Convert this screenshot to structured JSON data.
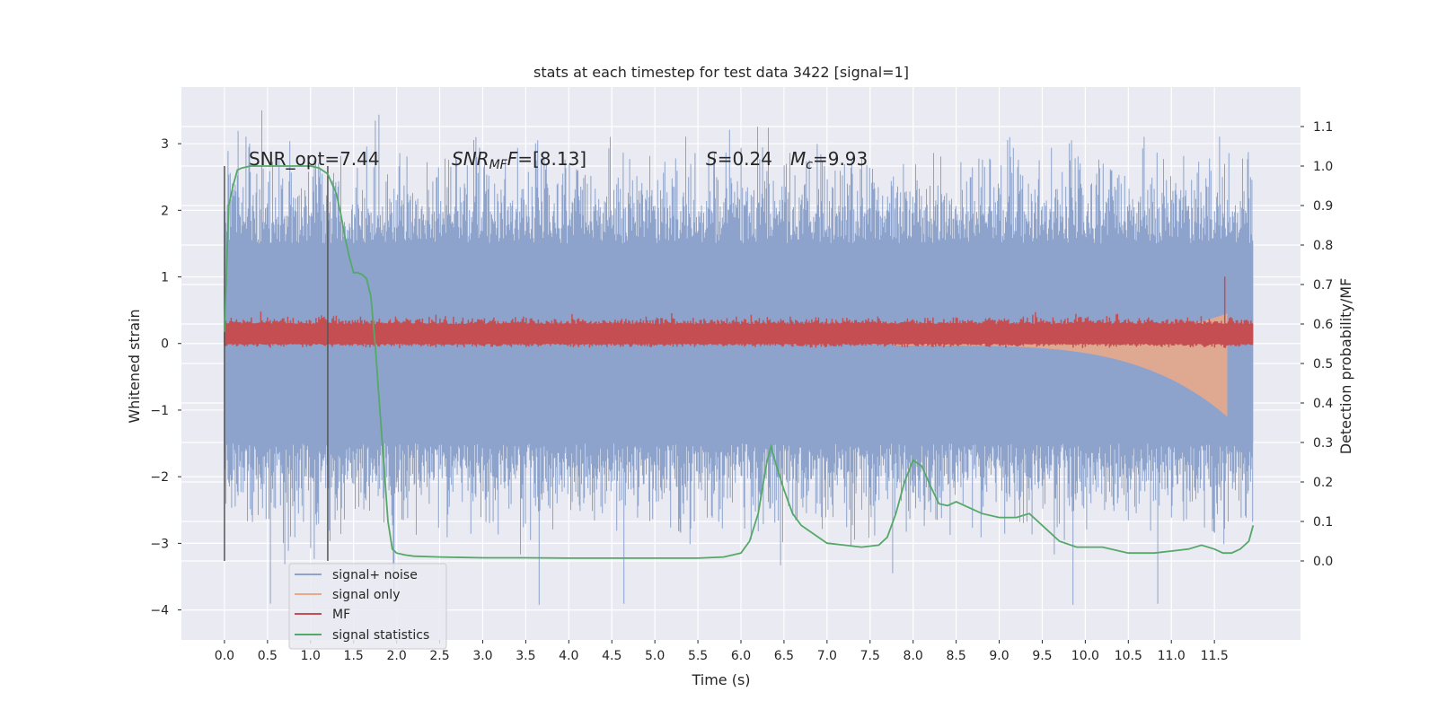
{
  "chart_data": {
    "type": "line",
    "title": "stats at each timestep for test data 3422 [signal=1]",
    "xlabel": "Time (s)",
    "ylabel_left": "Whitened strain",
    "ylabel_right": "Detection probability/MF",
    "xlim": [
      -0.5,
      12.5
    ],
    "ylim_left": [
      -4.45,
      3.85
    ],
    "ylim_right": [
      -0.2,
      1.2
    ],
    "x_ticks": [
      0.0,
      0.5,
      1.0,
      1.5,
      2.0,
      2.5,
      3.0,
      3.5,
      4.0,
      4.5,
      5.0,
      5.5,
      6.0,
      6.5,
      7.0,
      7.5,
      8.0,
      8.5,
      9.0,
      9.5,
      10.0,
      10.5,
      11.0,
      11.5
    ],
    "x_tick_labels": [
      "0.0",
      "0.5",
      "1.0",
      "1.5",
      "2.0",
      "2.5",
      "3.0",
      "3.5",
      "4.0",
      "4.5",
      "5.0",
      "5.5",
      "6.0",
      "6.5",
      "7.0",
      "7.5",
      "8.0",
      "8.5",
      "9.0",
      "9.5",
      "10.0",
      "10.5",
      "11.0",
      "11.5"
    ],
    "y_left_ticks": [
      3,
      2,
      1,
      0,
      -1,
      -2,
      -3,
      -4
    ],
    "y_left_tick_labels": [
      "3",
      "2",
      "1",
      "0",
      "−1",
      "−2",
      "−3",
      "−4"
    ],
    "y_right_ticks": [
      0.0,
      0.1,
      0.2,
      0.3,
      0.4,
      0.5,
      0.6,
      0.7,
      0.8,
      0.9,
      1.0,
      1.1
    ],
    "y_right_tick_labels": [
      "0.0",
      "0.1",
      "0.2",
      "0.3",
      "0.4",
      "0.5",
      "0.6",
      "0.7",
      "0.8",
      "0.9",
      "1.0",
      "1.1"
    ],
    "grid": true,
    "legend_position": "bottom-left",
    "legend": [
      "signal+ noise",
      "signal only",
      "MF",
      "signal statistics"
    ],
    "annotations": {
      "snr_opt": "SNR_opt=7.44",
      "snr_mf_label": "SNR",
      "snr_mf_sub": "MF",
      "snr_mf_value": "=[8.13]",
      "s_label": "S",
      "s_value": "=0.24",
      "mc_label": "M",
      "mc_sub": "c",
      "mc_value": "=9.93"
    },
    "vertical_markers": [
      0.0,
      1.2
    ],
    "series": [
      {
        "name": "signal+ noise",
        "kind": "noise-band",
        "x_range": [
          0.0,
          11.95
        ],
        "typical_range": [
          -1.5,
          1.5
        ],
        "extreme_range": [
          -4.05,
          3.5
        ]
      },
      {
        "name": "signal only",
        "kind": "chirp-envelope",
        "x_range": [
          7.8,
          11.65
        ],
        "start_amplitude": 0.03,
        "peak": [
          11.65,
          0.45
        ],
        "trough": [
          11.65,
          -1.1
        ]
      },
      {
        "name": "MF",
        "kind": "noise-band-right-axis",
        "x_range": [
          0.0,
          11.95
        ],
        "typical_range": [
          0.55,
          0.6
        ],
        "spike": [
          11.62,
          0.72
        ]
      },
      {
        "name": "signal statistics",
        "x": [
          0.0,
          0.05,
          0.1,
          0.15,
          0.2,
          0.3,
          0.5,
          0.8,
          1.0,
          1.1,
          1.2,
          1.3,
          1.35,
          1.4,
          1.45,
          1.5,
          1.55,
          1.6,
          1.65,
          1.7,
          1.75,
          1.8,
          1.85,
          1.9,
          1.95,
          2.0,
          2.1,
          2.2,
          2.5,
          3.0,
          3.5,
          4.0,
          4.5,
          5.0,
          5.5,
          5.8,
          6.0,
          6.1,
          6.2,
          6.3,
          6.35,
          6.4,
          6.5,
          6.6,
          6.7,
          6.8,
          7.0,
          7.2,
          7.4,
          7.6,
          7.7,
          7.8,
          7.9,
          8.0,
          8.1,
          8.2,
          8.3,
          8.4,
          8.5,
          8.6,
          8.8,
          9.0,
          9.1,
          9.2,
          9.35,
          9.5,
          9.7,
          9.9,
          10.2,
          10.5,
          10.8,
          11.0,
          11.2,
          11.35,
          11.5,
          11.6,
          11.7,
          11.8,
          11.9,
          11.95
        ],
        "values": [
          0.58,
          0.9,
          0.95,
          0.99,
          0.995,
          1.0,
          1.0,
          1.0,
          1.0,
          0.995,
          0.98,
          0.93,
          0.88,
          0.82,
          0.77,
          0.73,
          0.73,
          0.725,
          0.715,
          0.67,
          0.55,
          0.4,
          0.25,
          0.1,
          0.03,
          0.02,
          0.015,
          0.012,
          0.01,
          0.008,
          0.008,
          0.007,
          0.007,
          0.007,
          0.007,
          0.01,
          0.02,
          0.05,
          0.12,
          0.25,
          0.29,
          0.25,
          0.18,
          0.12,
          0.09,
          0.075,
          0.045,
          0.04,
          0.035,
          0.04,
          0.06,
          0.12,
          0.2,
          0.255,
          0.24,
          0.19,
          0.145,
          0.14,
          0.15,
          0.14,
          0.12,
          0.11,
          0.11,
          0.11,
          0.12,
          0.09,
          0.05,
          0.035,
          0.035,
          0.02,
          0.02,
          0.025,
          0.03,
          0.04,
          0.03,
          0.02,
          0.02,
          0.03,
          0.05,
          0.09
        ]
      }
    ]
  },
  "colors": {
    "plot_bg": "#eaeaf2",
    "grid": "#ffffff",
    "signal_noise": "#8da3cc",
    "signal_only": "#e8a88a",
    "mf": "#c44e52",
    "signal_statistics": "#55a868",
    "marker": "#555555"
  }
}
